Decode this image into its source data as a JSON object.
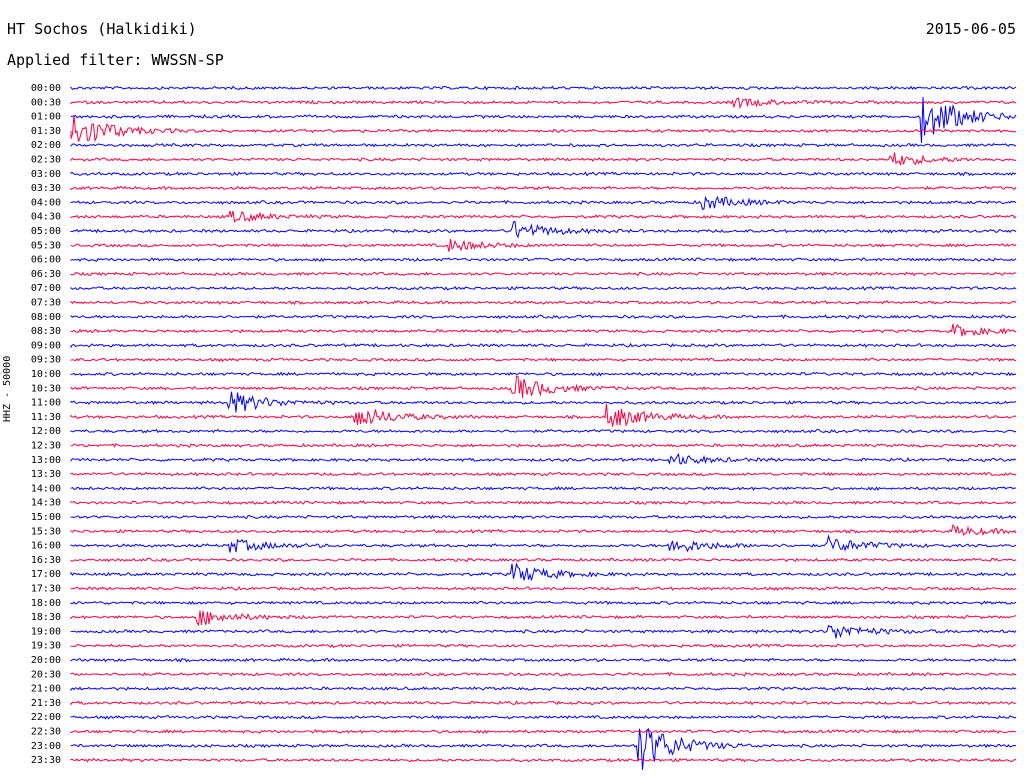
{
  "header": {
    "station": "HT Sochos (Halkidiki)",
    "date": "2015-06-05",
    "filter_label": "Applied filter: WWSSN-SP"
  },
  "y_axis_label": "HHZ - 50000",
  "colors": {
    "blue": "#0000ff",
    "red": "#ff0040"
  },
  "chart_data": {
    "type": "line",
    "title": "HT Sochos (Halkidiki)",
    "subtitle": "Applied filter: WWSSN-SP",
    "date": "2015-06-05",
    "ylabel": "HHZ - 50000",
    "rows": [
      "00:00",
      "00:30",
      "01:00",
      "01:30",
      "02:00",
      "02:30",
      "03:00",
      "03:30",
      "04:00",
      "04:30",
      "05:00",
      "05:30",
      "06:00",
      "06:30",
      "07:00",
      "07:30",
      "08:00",
      "08:30",
      "09:00",
      "09:30",
      "10:00",
      "10:30",
      "11:00",
      "11:30",
      "12:00",
      "12:30",
      "13:00",
      "13:30",
      "14:00",
      "14:30",
      "15:00",
      "15:30",
      "16:00",
      "16:30",
      "17:00",
      "17:30",
      "18:00",
      "18:30",
      "19:00",
      "19:30",
      "20:00",
      "20:30",
      "21:00",
      "21:30",
      "22:00",
      "22:30",
      "23:00",
      "23:30"
    ],
    "row_colors": [
      "blue",
      "red"
    ],
    "row_minutes": 30,
    "events": [
      {
        "row": "00:30",
        "minute": 21,
        "amp": 0.8
      },
      {
        "row": "01:00",
        "minute": 27,
        "amp": 4.5
      },
      {
        "row": "01:30",
        "minute": 0,
        "amp": 3.5
      },
      {
        "row": "02:30",
        "minute": 26,
        "amp": 1.2
      },
      {
        "row": "04:00",
        "minute": 20,
        "amp": 1.3
      },
      {
        "row": "04:30",
        "minute": 5,
        "amp": 1.0
      },
      {
        "row": "05:00",
        "minute": 14,
        "amp": 1.6
      },
      {
        "row": "05:30",
        "minute": 12,
        "amp": 1.0
      },
      {
        "row": "08:30",
        "minute": 28,
        "amp": 1.0
      },
      {
        "row": "10:30",
        "minute": 14,
        "amp": 2.2
      },
      {
        "row": "11:00",
        "minute": 5,
        "amp": 2.0
      },
      {
        "row": "11:30",
        "minute": 9,
        "amp": 2.0
      },
      {
        "row": "11:30",
        "minute": 17,
        "amp": 2.2
      },
      {
        "row": "13:00",
        "minute": 19,
        "amp": 1.0
      },
      {
        "row": "15:30",
        "minute": 28,
        "amp": 0.8
      },
      {
        "row": "16:00",
        "minute": 5,
        "amp": 1.2
      },
      {
        "row": "16:00",
        "minute": 19,
        "amp": 1.4
      },
      {
        "row": "16:00",
        "minute": 24,
        "amp": 1.4
      },
      {
        "row": "17:00",
        "minute": 14,
        "amp": 1.8
      },
      {
        "row": "18:30",
        "minute": 4,
        "amp": 1.4
      },
      {
        "row": "19:00",
        "minute": 24,
        "amp": 1.5
      },
      {
        "row": "23:00",
        "minute": 18,
        "amp": 4.5
      }
    ]
  }
}
